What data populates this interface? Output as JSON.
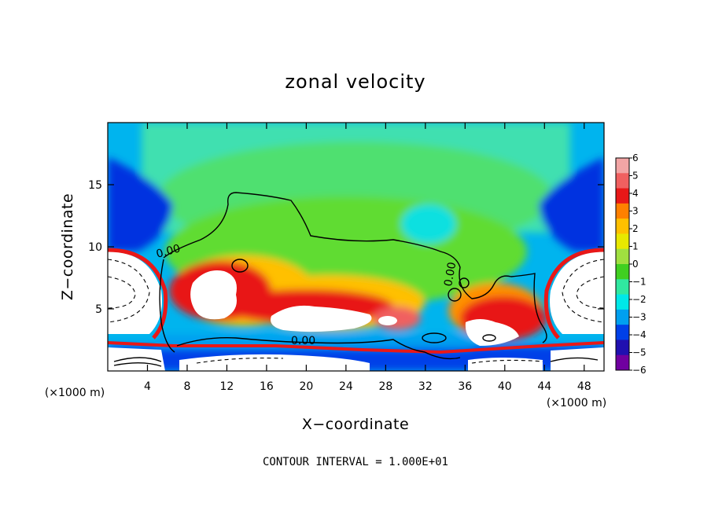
{
  "chart_data": {
    "type": "heatmap",
    "title": "zonal velocity",
    "xlabel": "X−coordinate",
    "ylabel": "Z−coordinate",
    "x_unit_label": "(×1000 m)",
    "y_unit_label": "(×1000 m)",
    "xlim": [
      0,
      50
    ],
    "ylim": [
      0,
      20
    ],
    "x_ticks": [
      4,
      8,
      12,
      16,
      20,
      24,
      28,
      32,
      36,
      40,
      44,
      48
    ],
    "y_ticks": [
      5,
      10,
      15
    ],
    "colorbar": {
      "min": -6,
      "max": 6,
      "ticks": [
        6,
        5,
        4,
        3,
        2,
        1,
        0,
        -1,
        -2,
        -3,
        -4,
        -5,
        -6
      ],
      "colors": [
        "#f2a5a5",
        "#f06060",
        "#e81818",
        "#ff8000",
        "#ffc000",
        "#e8e800",
        "#a0e040",
        "#40d020",
        "#30e8a0",
        "#00e8e8",
        "#00a0f0",
        "#0040e8",
        "#2010b0",
        "#7000a0"
      ],
      "over_color": "#ffffff",
      "under_color": "#ffffff"
    },
    "contour_interval_text": "CONTOUR INTERVAL = 1.000E+01",
    "contour_labels": [
      "0.00",
      "0.00",
      "0.00"
    ]
  }
}
